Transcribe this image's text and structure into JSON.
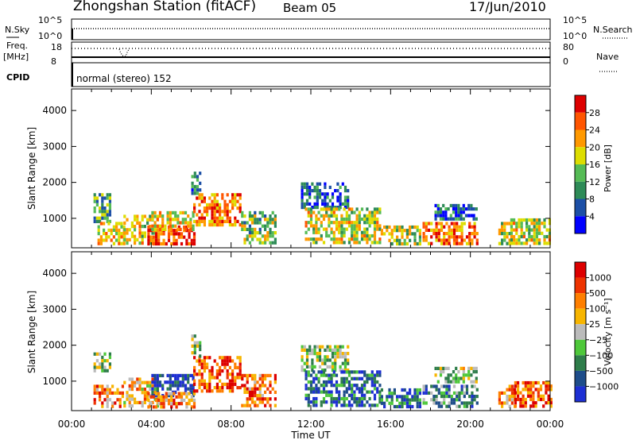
{
  "header": {
    "title": "Zhongshan Station (fitACF)",
    "beam": "Beam 05",
    "date": "17/Jun/2010"
  },
  "strips": {
    "nsky_label": "N.Sky",
    "nsky_ticks": [
      "10^5",
      "10^0"
    ],
    "nsearch_label": "N.Search",
    "nsearch_ticks": [
      "10^5",
      "10^0"
    ],
    "freq_label": "Freq.",
    "freq_unit": "[MHz]",
    "freq_ticks": [
      "18",
      "8"
    ],
    "nave_label": "Nave",
    "nave_ticks": [
      "80",
      "0"
    ],
    "cpid_label": "CPID",
    "cpid_text": "normal (stereo) 152"
  },
  "colors": {
    "power_scale": [
      "#0000ff",
      "#1c4fa6",
      "#2e8b57",
      "#55bb55",
      "#dddd00",
      "#ff9900",
      "#ff5500",
      "#dd0000"
    ],
    "velocity_scale": [
      "#1d2fd3",
      "#1e4d8a",
      "#2e7d4a",
      "#4ec83a",
      "#bbbbbb",
      "#f7b500",
      "#ff7f00",
      "#ee3300",
      "#dd0000"
    ],
    "ground_scatter": "#bbbbbb"
  },
  "chart_data": [
    {
      "type": "heatmap",
      "title": "",
      "xlabel": "",
      "ylabel": "Slant Range [km]",
      "xlim": [
        "00:00",
        "24:00"
      ],
      "ylim": [
        180,
        4600
      ],
      "yticks": [
        "1000",
        "2000",
        "3000",
        "4000"
      ],
      "colorbar": {
        "label": "Power [dB]",
        "ticks": [
          "4",
          "8",
          "12",
          "16",
          "20",
          "24",
          "28"
        ],
        "range": [
          0,
          32
        ]
      },
      "patches": [
        {
          "t0": 1.1,
          "t1": 1.9,
          "r0": 900,
          "r1": 1700,
          "level": 0.35
        },
        {
          "t0": 1.3,
          "t1": 2.6,
          "r0": 300,
          "r1": 900,
          "level": 0.6
        },
        {
          "t0": 2.6,
          "t1": 4.3,
          "r0": 300,
          "r1": 1100,
          "level": 0.55
        },
        {
          "t0": 3.8,
          "t1": 6.2,
          "r0": 300,
          "r1": 800,
          "level": 0.85
        },
        {
          "t0": 4.0,
          "t1": 6.1,
          "r0": 700,
          "r1": 1200,
          "level": 0.6
        },
        {
          "t0": 6.1,
          "t1": 8.5,
          "r0": 800,
          "r1": 1700,
          "level": 0.75
        },
        {
          "t0": 6.0,
          "t1": 6.4,
          "r0": 1700,
          "r1": 2300,
          "level": 0.3
        },
        {
          "t0": 8.5,
          "t1": 10.2,
          "r0": 300,
          "r1": 1200,
          "level": 0.45
        },
        {
          "t0": 11.5,
          "t1": 13.8,
          "r0": 1300,
          "r1": 2000,
          "level": 0.2
        },
        {
          "t0": 11.7,
          "t1": 15.5,
          "r0": 300,
          "r1": 1300,
          "level": 0.55
        },
        {
          "t0": 15.5,
          "t1": 17.5,
          "r0": 250,
          "r1": 800,
          "level": 0.5
        },
        {
          "t0": 17.6,
          "t1": 20.3,
          "r0": 300,
          "r1": 900,
          "level": 0.75
        },
        {
          "t0": 18.2,
          "t1": 20.3,
          "r0": 1000,
          "r1": 1400,
          "level": 0.2
        },
        {
          "t0": 21.4,
          "t1": 22.0,
          "r0": 300,
          "r1": 900,
          "level": 0.5
        },
        {
          "t0": 22.0,
          "t1": 24.0,
          "r0": 300,
          "r1": 1000,
          "level": 0.55
        }
      ]
    },
    {
      "type": "heatmap",
      "title": "",
      "xlabel": "Time UT",
      "ylabel": "Slant Range [km]",
      "xticks": [
        "00:00",
        "04:00",
        "08:00",
        "12:00",
        "16:00",
        "20:00",
        "00:00"
      ],
      "xlim": [
        "00:00",
        "24:00"
      ],
      "ylim": [
        180,
        4600
      ],
      "yticks": [
        "1000",
        "2000",
        "3000",
        "4000"
      ],
      "colorbar": {
        "label": "Velocity [m s⁻¹]",
        "ticks": [
          "1000",
          "500",
          "100",
          "25",
          "−25",
          "−100",
          "−500",
          "−1000"
        ],
        "range": [
          -1000,
          1000
        ]
      },
      "patches": [
        {
          "t0": 1.1,
          "t1": 2.6,
          "r0": 300,
          "r1": 900,
          "level": 0.75
        },
        {
          "t0": 1.1,
          "t1": 1.9,
          "r0": 1300,
          "r1": 1800,
          "level": 0.45
        },
        {
          "t0": 2.6,
          "t1": 4.3,
          "r0": 300,
          "r1": 1100,
          "level": 0.6
        },
        {
          "t0": 4.0,
          "t1": 6.1,
          "r0": 600,
          "r1": 1200,
          "level": 0.08
        },
        {
          "t0": 3.8,
          "t1": 6.2,
          "r0": 300,
          "r1": 700,
          "level": 0.7
        },
        {
          "t0": 6.1,
          "t1": 8.5,
          "r0": 700,
          "r1": 1700,
          "level": 0.82
        },
        {
          "t0": 6.0,
          "t1": 6.4,
          "r0": 1700,
          "r1": 2300,
          "level": 0.45
        },
        {
          "t0": 8.5,
          "t1": 10.2,
          "r0": 300,
          "r1": 1200,
          "level": 0.75
        },
        {
          "t0": 11.5,
          "t1": 13.8,
          "r0": 1300,
          "r1": 2000,
          "level": 0.45
        },
        {
          "t0": 11.7,
          "t1": 15.5,
          "r0": 300,
          "r1": 1300,
          "level": 0.2
        },
        {
          "t0": 15.5,
          "t1": 17.5,
          "r0": 250,
          "r1": 800,
          "level": 0.2
        },
        {
          "t0": 17.6,
          "t1": 20.3,
          "r0": 300,
          "r1": 900,
          "level": 0.3
        },
        {
          "t0": 18.2,
          "t1": 20.3,
          "r0": 1000,
          "r1": 1400,
          "level": 0.45
        },
        {
          "t0": 21.4,
          "t1": 22.2,
          "r0": 300,
          "r1": 900,
          "level": 0.7
        },
        {
          "t0": 22.2,
          "t1": 24.0,
          "r0": 300,
          "r1": 1000,
          "level": 0.78
        }
      ]
    }
  ]
}
